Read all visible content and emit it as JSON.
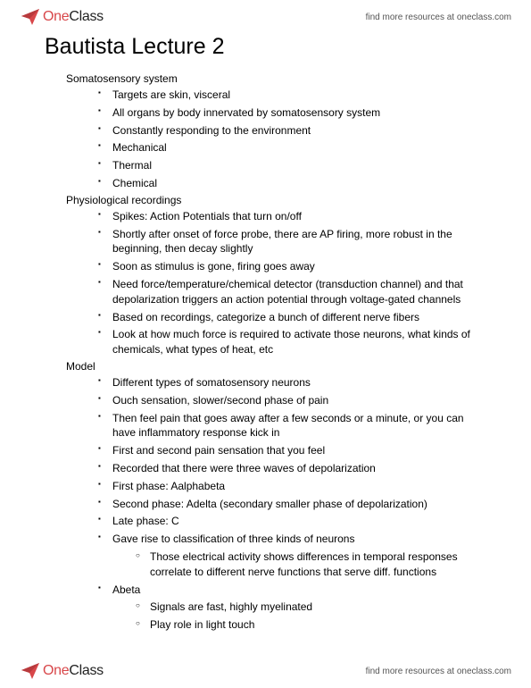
{
  "brand": {
    "one": "One",
    "class": "Class"
  },
  "tagline": "find more resources at oneclass.com",
  "title": "Bautista Lecture 2",
  "sections": [
    {
      "label": "Somatosensory system",
      "items": [
        {
          "text": "Targets are skin, visceral"
        },
        {
          "text": "All organs by body innervated by somatosensory system"
        },
        {
          "text": "Constantly responding to the environment"
        },
        {
          "text": "Mechanical"
        },
        {
          "text": "Thermal"
        },
        {
          "text": "Chemical"
        }
      ]
    },
    {
      "label": "Physiological recordings",
      "items": [
        {
          "text": "Spikes: Action Potentials that turn on/off"
        },
        {
          "text": "Shortly after onset of force probe, there are AP firing, more robust in the beginning, then decay slightly"
        },
        {
          "text": "Soon as stimulus is gone, firing goes away"
        },
        {
          "text": "Need force/temperature/chemical detector (transduction channel) and that depolarization triggers an action potential through voltage-gated channels"
        },
        {
          "text": "Based on recordings, categorize a bunch of different nerve fibers"
        },
        {
          "text": "Look at how much force is required to activate those neurons, what kinds of chemicals, what types of heat, etc"
        }
      ]
    },
    {
      "label": "Model",
      "items": [
        {
          "text": "Different types of somatosensory neurons"
        },
        {
          "text": "Ouch sensation, slower/second phase of pain"
        },
        {
          "text": "Then feel pain that goes away after a few seconds or a minute, or you can have inflammatory response kick in"
        },
        {
          "text": "First and second pain sensation that you feel"
        },
        {
          "text": "Recorded that there were three waves of depolarization"
        },
        {
          "text": "First phase: Aalphabeta"
        },
        {
          "text": "Second phase: Adelta (secondary smaller phase of depolarization)"
        },
        {
          "text": "Late phase: C"
        },
        {
          "text": "Gave rise to classification of three kinds of neurons",
          "sub": [
            {
              "text": "Those electrical activity shows differences in temporal responses correlate to different nerve functions that serve diff. functions"
            }
          ]
        },
        {
          "text": "Abeta",
          "sub": [
            {
              "text": "Signals are fast, highly myelinated"
            },
            {
              "text": "Play role in light touch"
            }
          ]
        }
      ]
    }
  ],
  "colors": {
    "brand_red": "#d8474a",
    "text": "#000000",
    "tagline": "#555555",
    "bg": "#ffffff"
  }
}
